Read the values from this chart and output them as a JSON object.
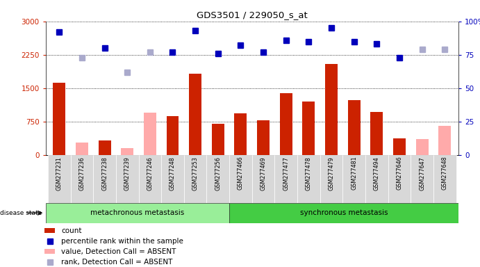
{
  "title": "GDS3501 / 229050_s_at",
  "samples": [
    "GSM277231",
    "GSM277236",
    "GSM277238",
    "GSM277239",
    "GSM277246",
    "GSM277248",
    "GSM277253",
    "GSM277256",
    "GSM277466",
    "GSM277469",
    "GSM277477",
    "GSM277478",
    "GSM277479",
    "GSM277481",
    "GSM277494",
    "GSM277646",
    "GSM277647",
    "GSM277648"
  ],
  "absent": [
    false,
    true,
    false,
    true,
    true,
    false,
    false,
    false,
    false,
    false,
    false,
    false,
    false,
    false,
    false,
    false,
    true,
    true
  ],
  "count_values": [
    1620,
    270,
    320,
    150,
    950,
    870,
    1820,
    700,
    940,
    780,
    1380,
    1200,
    2050,
    1230,
    970,
    370,
    360,
    650
  ],
  "percentile_values": [
    92,
    73,
    80,
    62,
    77,
    77,
    93,
    76,
    82,
    77,
    86,
    85,
    95,
    85,
    83,
    73,
    79,
    79
  ],
  "disease_groups": [
    {
      "label": "metachronous metastasis",
      "start": 0,
      "end": 8
    },
    {
      "label": "synchronous metastasis",
      "start": 8,
      "end": 18
    }
  ],
  "ylim_left": [
    0,
    3000
  ],
  "ylim_right": [
    0,
    100
  ],
  "yticks_left": [
    0,
    750,
    1500,
    2250,
    3000
  ],
  "yticks_right": [
    0,
    25,
    50,
    75,
    100
  ],
  "yticklabels_right": [
    "0",
    "25",
    "50",
    "75",
    "100%"
  ],
  "bar_color_present": "#cc2200",
  "bar_color_absent": "#ffaaaa",
  "dot_color_present": "#0000bb",
  "dot_color_absent": "#aaaacc",
  "bg_color_plot": "#ffffff",
  "tick_bg_color": "#d8d8d8",
  "group_color_meta": "#99ee99",
  "group_color_sync": "#44cc44",
  "disease_state_label": "disease state",
  "legend_items": [
    {
      "label": "count",
      "color": "#cc2200",
      "type": "bar"
    },
    {
      "label": "percentile rank within the sample",
      "color": "#0000bb",
      "type": "dot"
    },
    {
      "label": "value, Detection Call = ABSENT",
      "color": "#ffaaaa",
      "type": "bar"
    },
    {
      "label": "rank, Detection Call = ABSENT",
      "color": "#aaaacc",
      "type": "dot"
    }
  ]
}
